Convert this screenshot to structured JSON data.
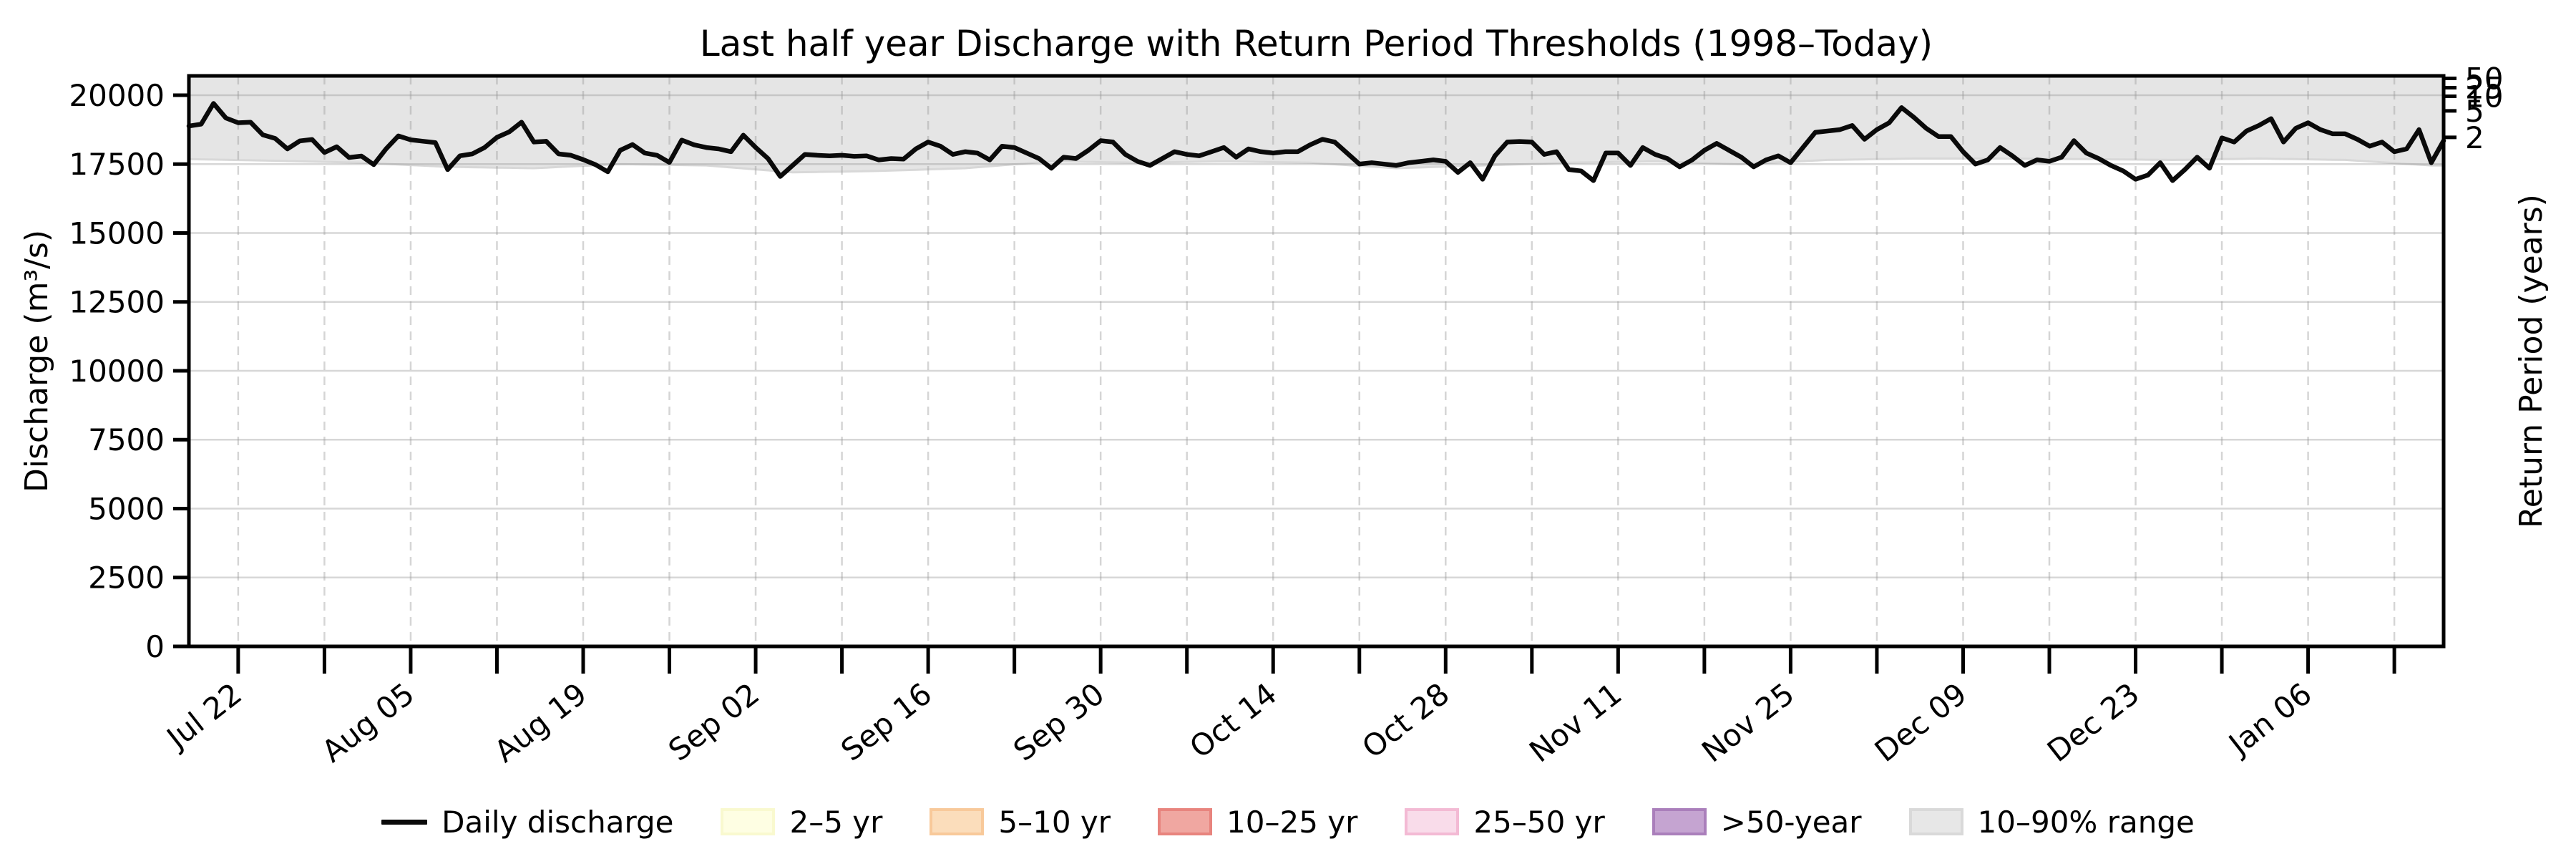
{
  "title": "Last half year Discharge with Return Period Thresholds (1998–Today)",
  "axes": {
    "y_left_label": "Discharge (m³/s)",
    "y_right_label": "Return Period (years)",
    "y_ticks": [
      0,
      2500,
      5000,
      7500,
      10000,
      12500,
      15000,
      17500,
      20000
    ],
    "x_tick_labels": [
      "Jul 22",
      "Aug 05",
      "Aug 19",
      "Sep 02",
      "Sep 16",
      "Sep 30",
      "Oct 14",
      "Oct 28",
      "Nov 11",
      "Nov 25",
      "Dec 09",
      "Dec 23",
      "Jan 06"
    ]
  },
  "legend": [
    {
      "label": "Daily discharge",
      "type": "line",
      "fill": "#0a0a0a",
      "edge": "#0a0a0a"
    },
    {
      "label": "2–5 yr",
      "type": "patch",
      "fill": "#fefee3",
      "edge": "#f9f9cf"
    },
    {
      "label": "5–10 yr",
      "type": "patch",
      "fill": "#fbddbb",
      "edge": "#f8c99a"
    },
    {
      "label": "10–25 yr",
      "type": "patch",
      "fill": "#f0a7a1",
      "edge": "#e8847e"
    },
    {
      "label": "25–50 yr",
      "type": "patch",
      "fill": "#f9dcea",
      "edge": "#f3bad4"
    },
    {
      "label": ">50-year",
      "type": "patch",
      "fill": "#c5a4d1",
      "edge": "#aa7fbb"
    },
    {
      "label": "10–90% range",
      "type": "patch",
      "fill": "#e7e7e7",
      "edge": "#d9d9d9"
    }
  ],
  "chart_data": {
    "type": "line",
    "title": "Last half year Discharge with Return Period Thresholds (1998–Today)",
    "xlabel": "",
    "ylabel": "Discharge (m³/s)",
    "y2label": "Return Period (years)",
    "ylim": [
      0,
      20700
    ],
    "grid": true,
    "legend_position": "bottom",
    "x_start_date": "Jul 18",
    "x_end_date": "Jan 17",
    "total_days": 183,
    "x_first_tick_day": 4,
    "x_tick_step_days": 7,
    "x_label_every_n_ticks": 2,
    "x_tick_labels": [
      "Jul 22",
      "Aug 05",
      "Aug 19",
      "Sep 02",
      "Sep 16",
      "Sep 30",
      "Oct 14",
      "Oct 28",
      "Nov 11",
      "Nov 25",
      "Dec 09",
      "Dec 23",
      "Jan 06"
    ],
    "y_ticks": [
      0,
      2500,
      5000,
      7500,
      10000,
      12500,
      15000,
      17500,
      20000
    ],
    "return_period_thresholds": [
      {
        "label": "2",
        "value": 18470
      },
      {
        "label": "5",
        "value": 19430
      },
      {
        "label": "10",
        "value": 19960
      },
      {
        "label": "25",
        "value": 20270
      },
      {
        "label": "50",
        "value": 20610
      }
    ],
    "series": [
      {
        "name": "Daily discharge",
        "color": "#0a0a0a",
        "step_days": 1,
        "values": [
          18880,
          18950,
          19700,
          19170,
          19000,
          19020,
          18560,
          18430,
          18050,
          18340,
          18390,
          17920,
          18130,
          17740,
          17790,
          17480,
          18050,
          18520,
          18380,
          18330,
          18280,
          17300,
          17800,
          17870,
          18100,
          18470,
          18670,
          19020,
          18300,
          18330,
          17870,
          17820,
          17660,
          17480,
          17220,
          18000,
          18210,
          17900,
          17820,
          17560,
          18370,
          18200,
          18100,
          18050,
          17950,
          18550,
          18100,
          17700,
          17050,
          17450,
          17850,
          17820,
          17800,
          17820,
          17780,
          17800,
          17650,
          17700,
          17680,
          18050,
          18300,
          18150,
          17850,
          17950,
          17900,
          17650,
          18150,
          18100,
          17900,
          17700,
          17350,
          17750,
          17700,
          18000,
          18350,
          18300,
          17850,
          17600,
          17450,
          17700,
          17950,
          17850,
          17800,
          17950,
          18100,
          17750,
          18050,
          17950,
          17900,
          17950,
          17950,
          18200,
          18400,
          18300,
          17900,
          17500,
          17550,
          17500,
          17450,
          17550,
          17600,
          17650,
          17600,
          17200,
          17550,
          16950,
          17800,
          18300,
          18320,
          18300,
          17850,
          17950,
          17300,
          17250,
          16900,
          17900,
          17900,
          17450,
          18100,
          17850,
          17700,
          17400,
          17650,
          18000,
          18250,
          18000,
          17750,
          17400,
          17650,
          17800,
          17550,
          18100,
          18650,
          18700,
          18750,
          18900,
          18400,
          18750,
          19000,
          19550,
          19200,
          18800,
          18500,
          18500,
          17950,
          17500,
          17650,
          18100,
          17800,
          17450,
          17650,
          17600,
          17750,
          18350,
          17900,
          17700,
          17450,
          17250,
          16950,
          17100,
          17550,
          16900,
          17300,
          17750,
          17350,
          18450,
          18300,
          18700,
          18900,
          19150,
          18300,
          18800,
          19000,
          18750,
          18600,
          18600,
          18400,
          18150,
          18300,
          17950,
          18050,
          18750,
          17550,
          18350
        ]
      },
      {
        "name": "10–90% range lower bound",
        "color": "#e5e5e5",
        "step_days": 7,
        "values": [
          17680,
          17620,
          17550,
          17400,
          17350,
          17500,
          17450,
          17200,
          17250,
          17350,
          17600,
          17550,
          17600,
          17550,
          17350,
          17450,
          17550,
          17600,
          17500,
          17650,
          17700,
          17700,
          17680,
          17650,
          17700,
          17650,
          17450
        ]
      }
    ],
    "band": {
      "name": "10–90% range",
      "upper_bound": "above_axis_top",
      "fill": "#e5e5e5",
      "edge": "#d8d8d8"
    }
  }
}
